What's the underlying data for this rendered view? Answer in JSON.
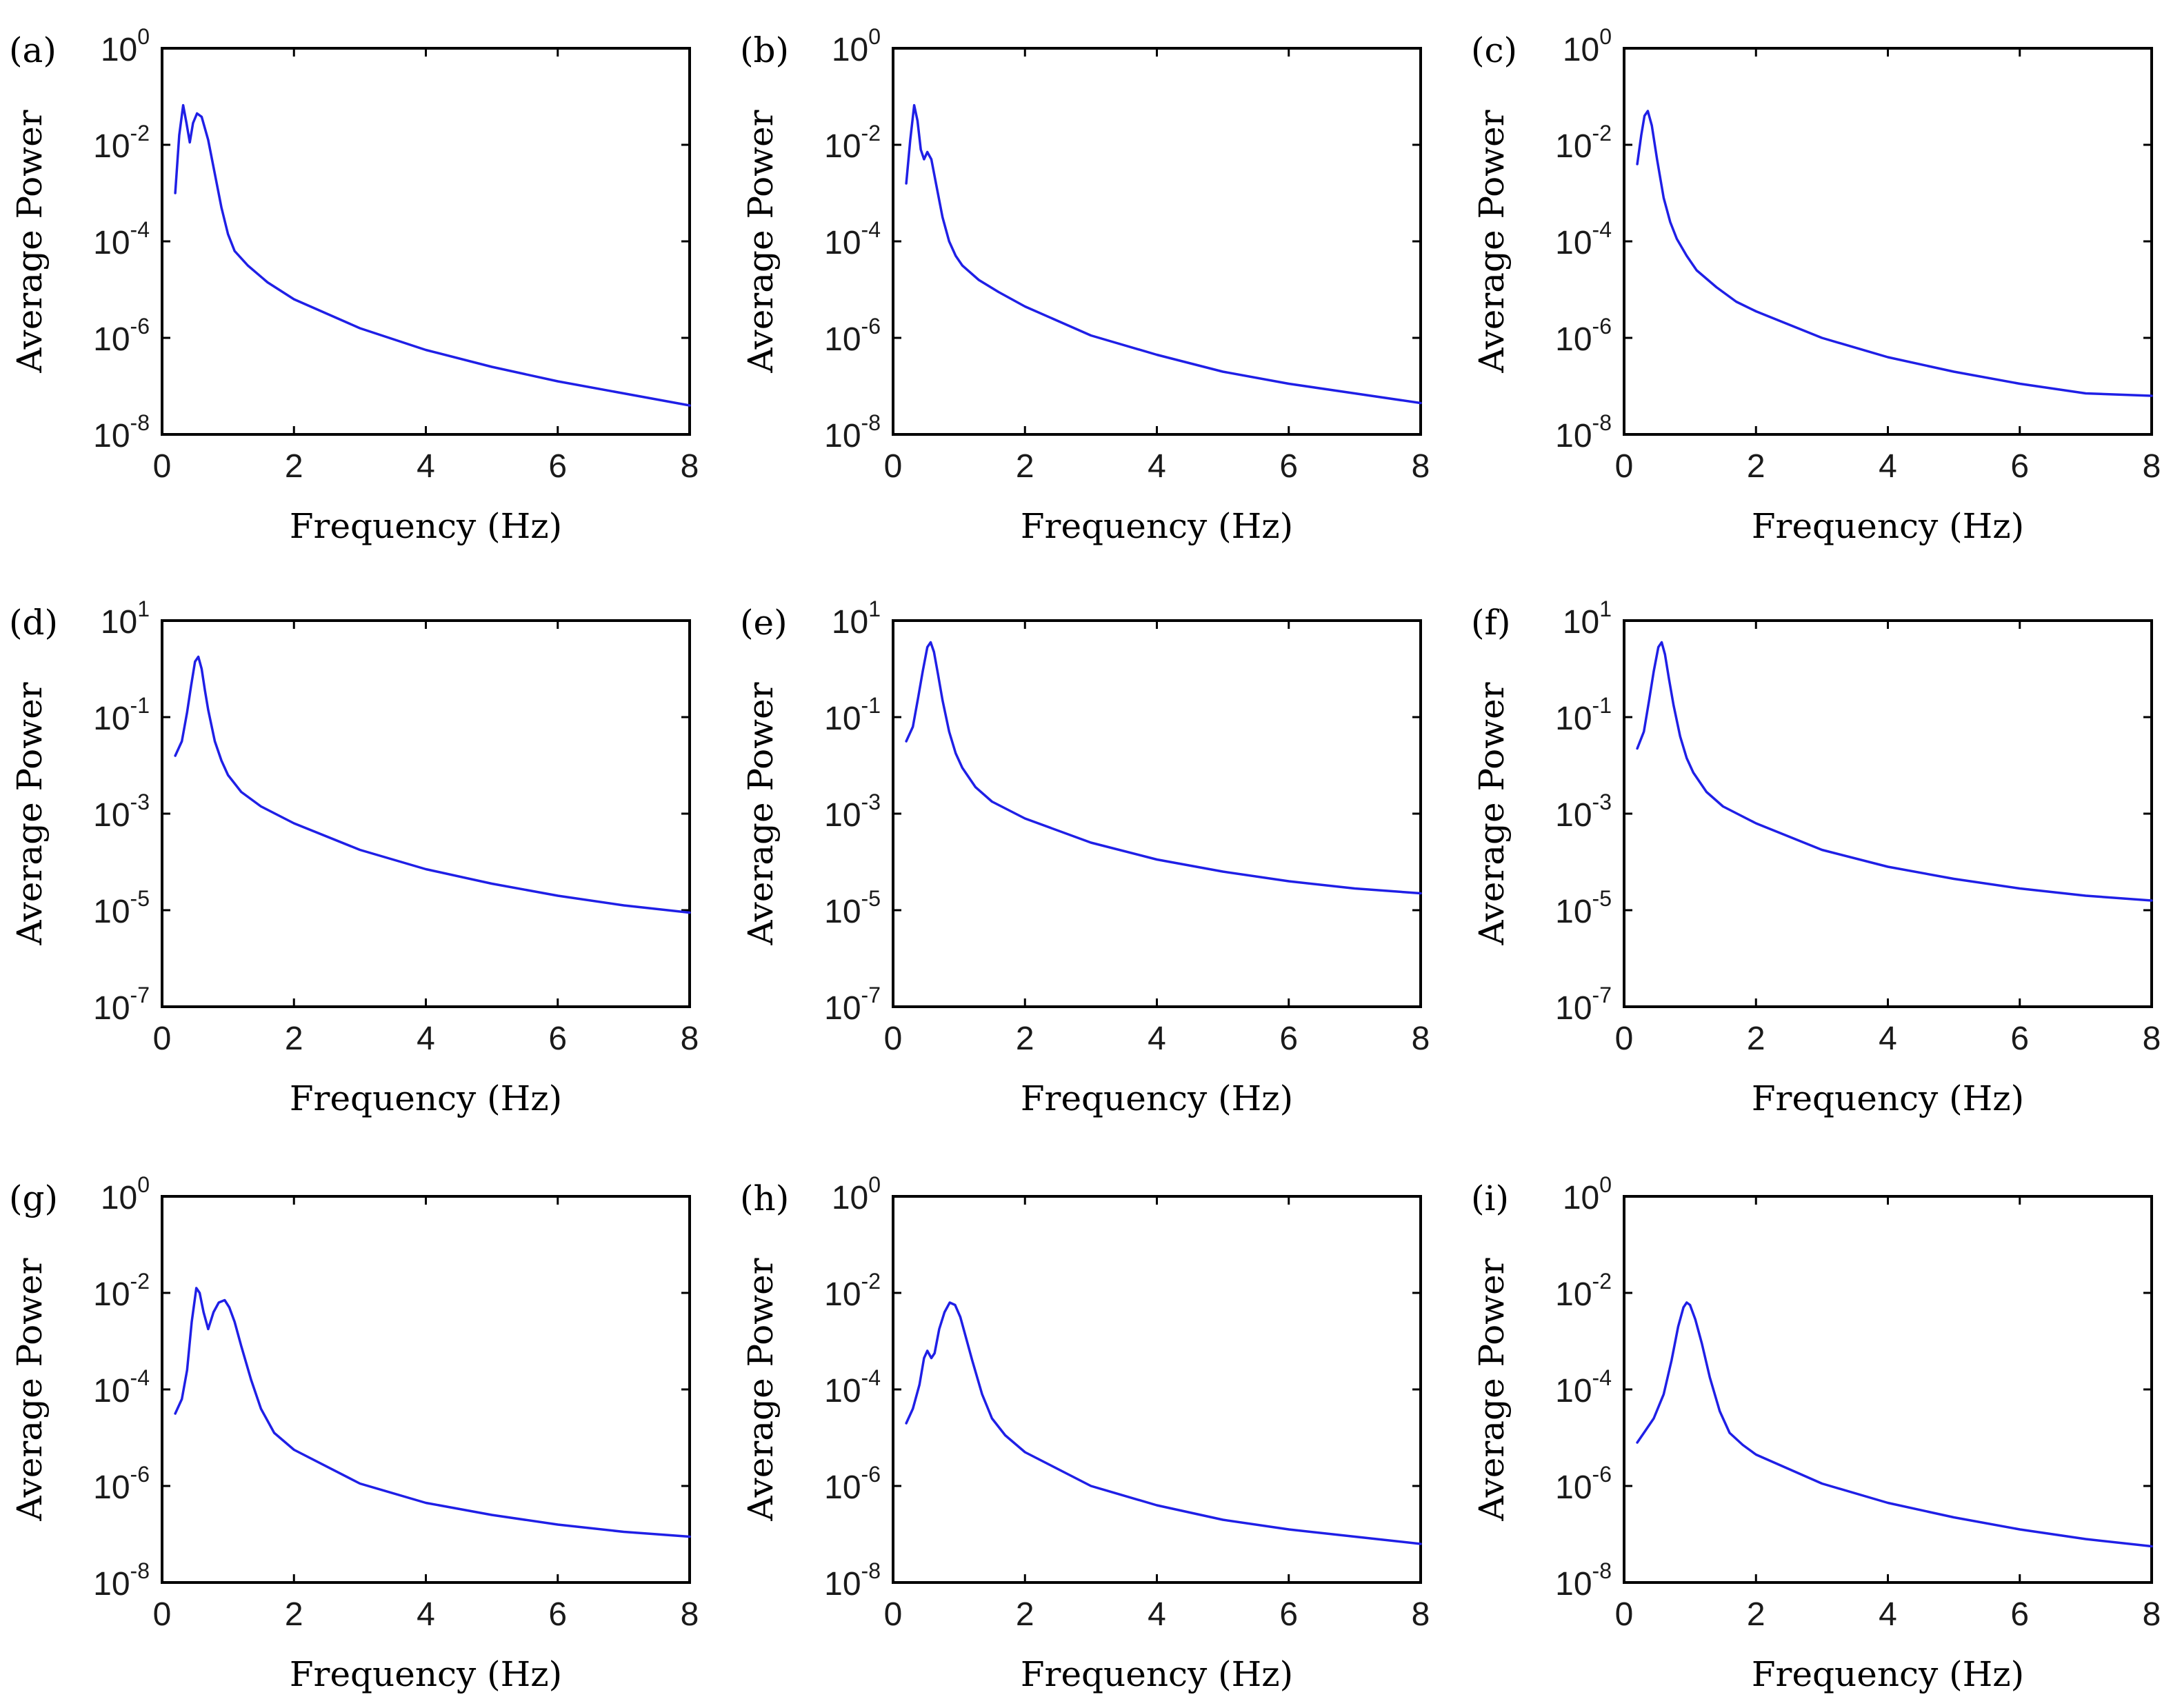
{
  "figure": {
    "series_color": "#1f1fe6",
    "xlabel": "Frequency (Hz)",
    "ylabel": "Average Power"
  },
  "chart_data": [
    {
      "panel": "(a)",
      "type": "line",
      "x_ticks": [
        "0",
        "2",
        "4",
        "6",
        "8"
      ],
      "xlim": [
        0,
        8
      ],
      "ylog_range": [
        -8,
        0
      ],
      "y_tick_exponents": [
        "0",
        "-2",
        "-4",
        "-6",
        "-8"
      ],
      "xlabel": "Frequency (Hz)",
      "ylabel": "Average Power",
      "x": [
        0.2,
        0.26,
        0.32,
        0.37,
        0.42,
        0.47,
        0.53,
        0.6,
        0.7,
        0.8,
        0.9,
        1.0,
        1.1,
        1.3,
        1.6,
        2.0,
        3.0,
        4.0,
        5.0,
        6.0,
        7.0,
        8.0
      ],
      "y_log10": [
        -3.0,
        -1.8,
        -1.18,
        -1.55,
        -1.95,
        -1.55,
        -1.35,
        -1.42,
        -1.9,
        -2.6,
        -3.3,
        -3.85,
        -4.2,
        -4.5,
        -4.85,
        -5.2,
        -5.8,
        -6.25,
        -6.6,
        -6.9,
        -7.15,
        -7.4
      ]
    },
    {
      "panel": "(b)",
      "type": "line",
      "x_ticks": [
        "0",
        "2",
        "4",
        "6",
        "8"
      ],
      "xlim": [
        0,
        8
      ],
      "ylog_range": [
        -8,
        0
      ],
      "y_tick_exponents": [
        "0",
        "-2",
        "-4",
        "-6",
        "-8"
      ],
      "xlabel": "Frequency (Hz)",
      "ylabel": "Average Power",
      "x": [
        0.2,
        0.26,
        0.32,
        0.37,
        0.42,
        0.47,
        0.52,
        0.58,
        0.65,
        0.75,
        0.85,
        0.95,
        1.05,
        1.3,
        1.6,
        2.0,
        3.0,
        4.0,
        5.0,
        6.0,
        7.0,
        8.0
      ],
      "y_log10": [
        -2.8,
        -1.9,
        -1.18,
        -1.5,
        -2.1,
        -2.3,
        -2.15,
        -2.3,
        -2.8,
        -3.5,
        -4.0,
        -4.3,
        -4.5,
        -4.8,
        -5.05,
        -5.35,
        -5.95,
        -6.35,
        -6.7,
        -6.95,
        -7.15,
        -7.35
      ]
    },
    {
      "panel": "(c)",
      "type": "line",
      "x_ticks": [
        "0",
        "2",
        "4",
        "6",
        "8"
      ],
      "xlim": [
        0,
        8
      ],
      "ylog_range": [
        -8,
        0
      ],
      "y_tick_exponents": [
        "0",
        "-2",
        "-4",
        "-6",
        "-8"
      ],
      "xlabel": "Frequency (Hz)",
      "ylabel": "Average Power",
      "x": [
        0.2,
        0.26,
        0.31,
        0.36,
        0.42,
        0.5,
        0.6,
        0.7,
        0.8,
        0.95,
        1.1,
        1.4,
        1.7,
        2.0,
        3.0,
        4.0,
        5.0,
        6.0,
        7.0,
        8.0
      ],
      "y_log10": [
        -2.4,
        -1.8,
        -1.4,
        -1.3,
        -1.6,
        -2.3,
        -3.1,
        -3.6,
        -3.95,
        -4.3,
        -4.6,
        -4.95,
        -5.25,
        -5.45,
        -6.0,
        -6.4,
        -6.7,
        -6.95,
        -7.15,
        -7.2
      ]
    },
    {
      "panel": "(d)",
      "type": "line",
      "x_ticks": [
        "0",
        "2",
        "4",
        "6",
        "8"
      ],
      "xlim": [
        0,
        8
      ],
      "ylog_range": [
        -7,
        1
      ],
      "y_tick_exponents": [
        "1",
        "-1",
        "-3",
        "-5",
        "-7"
      ],
      "xlabel": "Frequency (Hz)",
      "ylabel": "Average Power",
      "x": [
        0.2,
        0.3,
        0.38,
        0.44,
        0.5,
        0.55,
        0.6,
        0.65,
        0.7,
        0.8,
        0.9,
        1.0,
        1.2,
        1.5,
        2.0,
        3.0,
        4.0,
        5.0,
        6.0,
        7.0,
        8.0
      ],
      "y_log10": [
        -1.8,
        -1.5,
        -0.9,
        -0.35,
        0.15,
        0.25,
        0.0,
        -0.45,
        -0.85,
        -1.5,
        -1.9,
        -2.2,
        -2.55,
        -2.85,
        -3.2,
        -3.75,
        -4.15,
        -4.45,
        -4.7,
        -4.9,
        -5.05
      ]
    },
    {
      "panel": "(e)",
      "type": "line",
      "x_ticks": [
        "0",
        "2",
        "4",
        "6",
        "8"
      ],
      "xlim": [
        0,
        8
      ],
      "ylog_range": [
        -7,
        1
      ],
      "y_tick_exponents": [
        "1",
        "-1",
        "-3",
        "-5",
        "-7"
      ],
      "xlabel": "Frequency (Hz)",
      "ylabel": "Average Power",
      "x": [
        0.2,
        0.3,
        0.38,
        0.45,
        0.52,
        0.57,
        0.62,
        0.68,
        0.75,
        0.85,
        0.95,
        1.05,
        1.25,
        1.5,
        2.0,
        3.0,
        4.0,
        5.0,
        6.0,
        7.0,
        8.0
      ],
      "y_log10": [
        -1.5,
        -1.2,
        -0.6,
        -0.05,
        0.45,
        0.55,
        0.35,
        -0.1,
        -0.65,
        -1.3,
        -1.75,
        -2.05,
        -2.45,
        -2.75,
        -3.1,
        -3.6,
        -3.95,
        -4.2,
        -4.4,
        -4.55,
        -4.65
      ]
    },
    {
      "panel": "(f)",
      "type": "line",
      "x_ticks": [
        "0",
        "2",
        "4",
        "6",
        "8"
      ],
      "xlim": [
        0,
        8
      ],
      "ylog_range": [
        -7,
        1
      ],
      "y_tick_exponents": [
        "1",
        "-1",
        "-3",
        "-5",
        "-7"
      ],
      "xlabel": "Frequency (Hz)",
      "ylabel": "Average Power",
      "x": [
        0.2,
        0.3,
        0.38,
        0.45,
        0.52,
        0.57,
        0.62,
        0.68,
        0.75,
        0.85,
        0.95,
        1.05,
        1.25,
        1.5,
        2.0,
        3.0,
        4.0,
        5.0,
        6.0,
        7.0,
        8.0
      ],
      "y_log10": [
        -1.65,
        -1.3,
        -0.65,
        -0.05,
        0.45,
        0.55,
        0.3,
        -0.2,
        -0.75,
        -1.4,
        -1.85,
        -2.15,
        -2.55,
        -2.85,
        -3.2,
        -3.75,
        -4.1,
        -4.35,
        -4.55,
        -4.7,
        -4.8
      ]
    },
    {
      "panel": "(g)",
      "type": "line",
      "x_ticks": [
        "0",
        "2",
        "4",
        "6",
        "8"
      ],
      "xlim": [
        0,
        8
      ],
      "ylog_range": [
        -8,
        0
      ],
      "y_tick_exponents": [
        "0",
        "-2",
        "-4",
        "-6",
        "-8"
      ],
      "xlabel": "Frequency (Hz)",
      "ylabel": "Average Power",
      "x": [
        0.2,
        0.3,
        0.38,
        0.45,
        0.52,
        0.57,
        0.63,
        0.7,
        0.78,
        0.86,
        0.95,
        1.02,
        1.1,
        1.2,
        1.35,
        1.5,
        1.7,
        2.0,
        3.0,
        4.0,
        5.0,
        6.0,
        7.0,
        8.0
      ],
      "y_log10": [
        -4.5,
        -4.2,
        -3.6,
        -2.6,
        -1.9,
        -2.0,
        -2.4,
        -2.75,
        -2.4,
        -2.2,
        -2.15,
        -2.3,
        -2.6,
        -3.1,
        -3.8,
        -4.4,
        -4.9,
        -5.25,
        -5.95,
        -6.35,
        -6.6,
        -6.8,
        -6.95,
        -7.05
      ]
    },
    {
      "panel": "(h)",
      "type": "line",
      "x_ticks": [
        "0",
        "2",
        "4",
        "6",
        "8"
      ],
      "xlim": [
        0,
        8
      ],
      "ylog_range": [
        -8,
        0
      ],
      "y_tick_exponents": [
        "0",
        "-2",
        "-4",
        "-6",
        "-8"
      ],
      "xlabel": "Frequency (Hz)",
      "ylabel": "Average Power",
      "x": [
        0.2,
        0.3,
        0.4,
        0.47,
        0.52,
        0.58,
        0.63,
        0.7,
        0.78,
        0.86,
        0.94,
        1.02,
        1.1,
        1.2,
        1.35,
        1.5,
        1.7,
        2.0,
        3.0,
        4.0,
        5.0,
        6.0,
        7.0,
        8.0
      ],
      "y_log10": [
        -4.7,
        -4.4,
        -3.9,
        -3.35,
        -3.2,
        -3.35,
        -3.25,
        -2.75,
        -2.4,
        -2.2,
        -2.25,
        -2.5,
        -2.9,
        -3.4,
        -4.1,
        -4.6,
        -4.95,
        -5.3,
        -6.0,
        -6.4,
        -6.7,
        -6.9,
        -7.05,
        -7.2
      ]
    },
    {
      "panel": "(i)",
      "type": "line",
      "x_ticks": [
        "0",
        "2",
        "4",
        "6",
        "8"
      ],
      "xlim": [
        0,
        8
      ],
      "ylog_range": [
        -8,
        0
      ],
      "y_tick_exponents": [
        "0",
        "-2",
        "-4",
        "-6",
        "-8"
      ],
      "xlabel": "Frequency (Hz)",
      "ylabel": "Average Power",
      "x": [
        0.2,
        0.3,
        0.45,
        0.6,
        0.72,
        0.82,
        0.9,
        0.95,
        1.0,
        1.08,
        1.18,
        1.3,
        1.45,
        1.6,
        1.8,
        2.0,
        3.0,
        4.0,
        5.0,
        6.0,
        7.0,
        8.0
      ],
      "y_log10": [
        -5.1,
        -4.9,
        -4.6,
        -4.1,
        -3.4,
        -2.7,
        -2.3,
        -2.2,
        -2.25,
        -2.55,
        -3.05,
        -3.75,
        -4.45,
        -4.9,
        -5.15,
        -5.35,
        -5.95,
        -6.35,
        -6.65,
        -6.9,
        -7.1,
        -7.25
      ]
    }
  ]
}
